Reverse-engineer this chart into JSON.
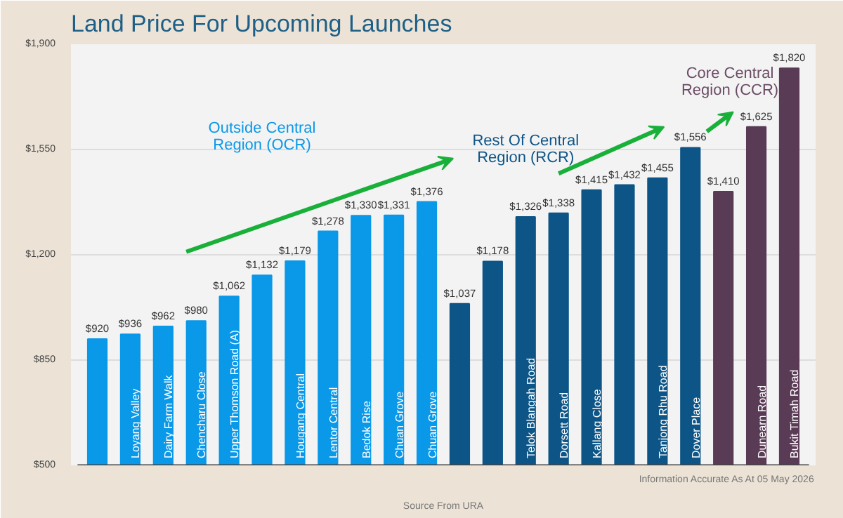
{
  "chart_data": {
    "type": "bar",
    "title": "Land Price For Upcoming Launches",
    "categories": [
      null,
      "Loyang Valley",
      "Dairy Farm Walk",
      "Chencharu Close",
      "Upper Thomson Road (A)",
      null,
      "Hougang Central",
      "Lentor Central",
      "Bedok Rise",
      "Chuan Grove",
      "Chuan Grove",
      null,
      null,
      "Telok Blangah Road",
      "Dorsett Road",
      "Kallang Close",
      null,
      "Tanjong Rhu Road",
      "Dover Place",
      null,
      "Dunearn Road",
      "Bukit Timah Road"
    ],
    "values": [
      920,
      936,
      962,
      980,
      1062,
      1132,
      1179,
      1278,
      1330,
      1331,
      1376,
      1037,
      1178,
      1326,
      1338,
      1415,
      1432,
      1455,
      1556,
      1410,
      1625,
      1820
    ],
    "value_labels": [
      "$920",
      "$936",
      "$962",
      "$980",
      "$1,062",
      "$1,132",
      "$1,179",
      "$1,278",
      "$1,330",
      "$1,331",
      "$1,376",
      "$1,037",
      "$1,178",
      "$1,326",
      "$1,338",
      "$1,415",
      "$1,432",
      "$1,455",
      "$1,556",
      "$1,410",
      "$1,625",
      "$1,820"
    ],
    "colors": [
      "#0a98e8",
      "#0a98e8",
      "#0a98e8",
      "#0a98e8",
      "#0a98e8",
      "#0a98e8",
      "#0a98e8",
      "#0a98e8",
      "#0a98e8",
      "#0a98e8",
      "#0a98e8",
      "#0d5586",
      "#0d5586",
      "#0d5586",
      "#0d5586",
      "#0d5586",
      "#0d5586",
      "#0d5586",
      "#0d5586",
      "#5a3b55",
      "#5a3b55",
      "#5a3b55"
    ],
    "ylim": [
      500,
      1900
    ],
    "yticks": [
      {
        "value": 500,
        "label": "$500"
      },
      {
        "value": 850,
        "label": "$850"
      },
      {
        "value": 1200,
        "label": "$1,200"
      },
      {
        "value": 1550,
        "label": "$1,550"
      },
      {
        "value": 1900,
        "label": "$1,900"
      }
    ],
    "grid": "y",
    "annotations": [
      "Outside Central Region (OCR)",
      "Rest Of Central Region (RCR)",
      "Core Central Region (CCR)",
      "Source From URA",
      "Information Accurate As At 05 May 2026"
    ]
  }
}
